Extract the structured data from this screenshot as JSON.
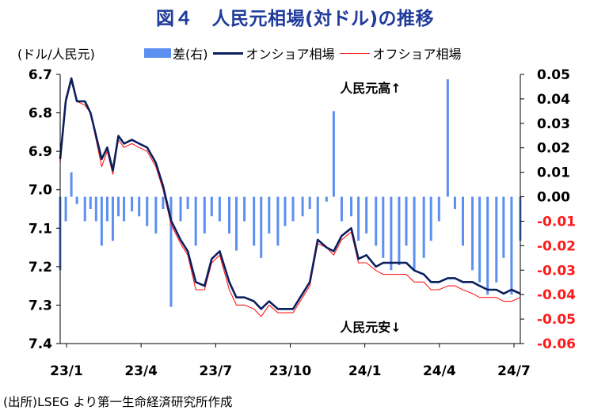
{
  "title": "図４　人民元相場(対ドル)の推移",
  "unit_label": "(ドル/人民元)",
  "legend": {
    "diff": "差(右)",
    "onshore": "オンショア相場",
    "offshore": "オフショア相場"
  },
  "annotations": {
    "up": "人民元高↑",
    "down": "人民元安↓"
  },
  "source": "(出所)LSEG より第一生命経済研究所作成",
  "colors": {
    "title": "#1f3b9c",
    "diff_bars": "#5b8ff0",
    "onshore": "#0b1f5e",
    "offshore": "#ff1a1a",
    "negative_ticks": "#ff1a1a"
  },
  "chart_data": {
    "type": "line",
    "x_ticks": [
      "23/1",
      "23/4",
      "23/7",
      "23/10",
      "24/1",
      "24/4",
      "24/7"
    ],
    "left_axis": {
      "ticks": [
        "6.7",
        "6.8",
        "6.9",
        "7.0",
        "7.1",
        "7.2",
        "7.3",
        "7.4"
      ],
      "range": [
        6.7,
        7.4
      ],
      "inverted": true
    },
    "right_axis": {
      "ticks": [
        "0.05",
        "0.04",
        "0.03",
        "0.02",
        "0.01",
        "0.00",
        "-0.01",
        "-0.02",
        "-0.03",
        "-0.04",
        "-0.05",
        "-0.06"
      ],
      "range": [
        -0.06,
        0.05
      ]
    },
    "x_range": [
      "2023-01-01",
      "2024-07-31"
    ],
    "series": [
      {
        "name": "オンショア相場",
        "axis": "left",
        "x": [
          "2023-01-01",
          "2023-01-08",
          "2023-01-15",
          "2023-01-22",
          "2023-02-01",
          "2023-02-08",
          "2023-02-15",
          "2023-02-22",
          "2023-03-01",
          "2023-03-08",
          "2023-03-15",
          "2023-03-22",
          "2023-04-01",
          "2023-04-10",
          "2023-04-20",
          "2023-05-01",
          "2023-05-10",
          "2023-05-20",
          "2023-06-01",
          "2023-06-10",
          "2023-06-20",
          "2023-07-01",
          "2023-07-10",
          "2023-07-20",
          "2023-08-01",
          "2023-08-10",
          "2023-08-20",
          "2023-09-01",
          "2023-09-10",
          "2023-09-20",
          "2023-10-01",
          "2023-10-10",
          "2023-10-20",
          "2023-11-01",
          "2023-11-10",
          "2023-11-20",
          "2023-12-01",
          "2023-12-10",
          "2023-12-20",
          "2024-01-01",
          "2024-01-10",
          "2024-01-20",
          "2024-02-01",
          "2024-02-10",
          "2024-02-20",
          "2024-03-01",
          "2024-03-10",
          "2024-03-20",
          "2024-04-01",
          "2024-04-10",
          "2024-04-20",
          "2024-05-01",
          "2024-05-10",
          "2024-05-20",
          "2024-06-01",
          "2024-06-10",
          "2024-06-20",
          "2024-07-01",
          "2024-07-10",
          "2024-07-20",
          "2024-07-31"
        ],
        "y": [
          6.92,
          6.77,
          6.71,
          6.77,
          6.77,
          6.8,
          6.86,
          6.92,
          6.89,
          6.95,
          6.86,
          6.88,
          6.87,
          6.88,
          6.89,
          6.93,
          6.99,
          7.08,
          7.13,
          7.16,
          7.24,
          7.25,
          7.18,
          7.16,
          7.24,
          7.28,
          7.28,
          7.29,
          7.31,
          7.29,
          7.31,
          7.31,
          7.31,
          7.27,
          7.24,
          7.13,
          7.15,
          7.16,
          7.12,
          7.1,
          7.18,
          7.17,
          7.2,
          7.19,
          7.19,
          7.19,
          7.19,
          7.21,
          7.22,
          7.24,
          7.24,
          7.23,
          7.23,
          7.24,
          7.24,
          7.25,
          7.26,
          7.26,
          7.27,
          7.26,
          7.27
        ]
      },
      {
        "name": "オフショア相場",
        "axis": "left",
        "x": [
          "2023-01-01",
          "2023-01-08",
          "2023-01-15",
          "2023-01-22",
          "2023-02-01",
          "2023-02-08",
          "2023-02-15",
          "2023-02-22",
          "2023-03-01",
          "2023-03-08",
          "2023-03-15",
          "2023-03-22",
          "2023-04-01",
          "2023-04-10",
          "2023-04-20",
          "2023-05-01",
          "2023-05-10",
          "2023-05-20",
          "2023-06-01",
          "2023-06-10",
          "2023-06-20",
          "2023-07-01",
          "2023-07-10",
          "2023-07-20",
          "2023-08-01",
          "2023-08-10",
          "2023-08-20",
          "2023-09-01",
          "2023-09-10",
          "2023-09-20",
          "2023-10-01",
          "2023-10-10",
          "2023-10-20",
          "2023-11-01",
          "2023-11-10",
          "2023-11-20",
          "2023-12-01",
          "2023-12-10",
          "2023-12-20",
          "2024-01-01",
          "2024-01-10",
          "2024-01-20",
          "2024-02-01",
          "2024-02-10",
          "2024-02-20",
          "2024-03-01",
          "2024-03-10",
          "2024-03-20",
          "2024-04-01",
          "2024-04-10",
          "2024-04-20",
          "2024-05-01",
          "2024-05-10",
          "2024-05-20",
          "2024-06-01",
          "2024-06-10",
          "2024-06-20",
          "2024-07-01",
          "2024-07-10",
          "2024-07-20",
          "2024-07-31"
        ],
        "y": [
          6.93,
          6.76,
          6.72,
          6.77,
          6.78,
          6.8,
          6.87,
          6.94,
          6.9,
          6.96,
          6.87,
          6.89,
          6.88,
          6.89,
          6.9,
          6.94,
          7.0,
          7.09,
          7.14,
          7.17,
          7.26,
          7.26,
          7.19,
          7.17,
          7.26,
          7.3,
          7.3,
          7.31,
          7.33,
          7.3,
          7.32,
          7.32,
          7.32,
          7.28,
          7.25,
          7.14,
          7.15,
          7.17,
          7.13,
          7.11,
          7.19,
          7.19,
          7.21,
          7.22,
          7.22,
          7.22,
          7.22,
          7.24,
          7.24,
          7.26,
          7.26,
          7.25,
          7.25,
          7.26,
          7.27,
          7.28,
          7.28,
          7.28,
          7.29,
          7.29,
          7.28
        ]
      },
      {
        "name": "差(右)",
        "type": "bar",
        "axis": "right",
        "x": [
          "2023-01-01",
          "2023-01-08",
          "2023-01-15",
          "2023-01-22",
          "2023-02-01",
          "2023-02-08",
          "2023-02-15",
          "2023-02-22",
          "2023-03-01",
          "2023-03-08",
          "2023-03-15",
          "2023-03-22",
          "2023-04-01",
          "2023-04-10",
          "2023-04-20",
          "2023-05-01",
          "2023-05-10",
          "2023-05-20",
          "2023-06-01",
          "2023-06-10",
          "2023-06-20",
          "2023-07-01",
          "2023-07-10",
          "2023-07-20",
          "2023-08-01",
          "2023-08-10",
          "2023-08-20",
          "2023-09-01",
          "2023-09-10",
          "2023-09-20",
          "2023-10-01",
          "2023-10-10",
          "2023-10-20",
          "2023-11-01",
          "2023-11-10",
          "2023-11-20",
          "2023-12-01",
          "2023-12-10",
          "2023-12-20",
          "2024-01-01",
          "2024-01-10",
          "2024-01-20",
          "2024-02-01",
          "2024-02-10",
          "2024-02-20",
          "2024-03-01",
          "2024-03-10",
          "2024-03-20",
          "2024-04-01",
          "2024-04-10",
          "2024-04-20",
          "2024-05-01",
          "2024-05-10",
          "2024-05-20",
          "2024-06-01",
          "2024-06-10",
          "2024-06-20",
          "2024-07-01",
          "2024-07-10",
          "2024-07-20",
          "2024-07-31"
        ],
        "values": [
          -0.03,
          -0.01,
          0.01,
          -0.003,
          -0.01,
          -0.005,
          -0.01,
          -0.02,
          -0.01,
          -0.018,
          -0.008,
          -0.01,
          -0.006,
          -0.008,
          -0.012,
          -0.015,
          -0.005,
          -0.045,
          -0.01,
          -0.005,
          -0.02,
          -0.015,
          -0.008,
          -0.01,
          -0.015,
          -0.022,
          -0.01,
          -0.02,
          -0.025,
          -0.015,
          -0.02,
          -0.012,
          -0.01,
          -0.008,
          -0.005,
          -0.015,
          -0.002,
          0.035,
          -0.01,
          -0.008,
          -0.018,
          -0.015,
          -0.02,
          -0.025,
          -0.03,
          -0.028,
          -0.02,
          -0.03,
          -0.025,
          -0.018,
          -0.01,
          0.048,
          -0.005,
          -0.02,
          -0.03,
          -0.035,
          -0.04,
          -0.035,
          -0.025,
          -0.04,
          -0.018
        ]
      }
    ]
  }
}
